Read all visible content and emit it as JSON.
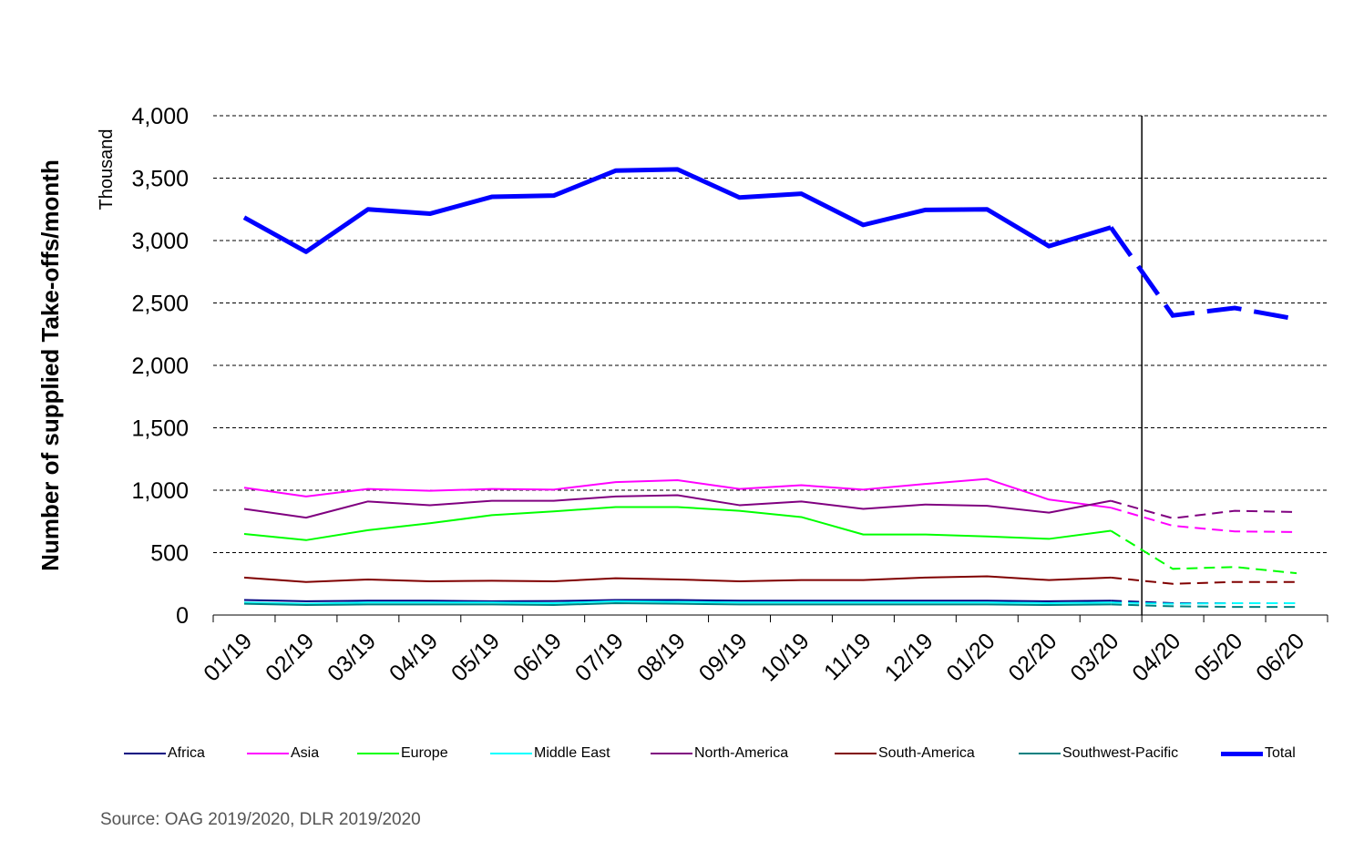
{
  "chart_data": {
    "type": "line",
    "ylabel": "Number of supplied Take-offs/month",
    "y_unit": "Thousand",
    "ylim": [
      0,
      4000
    ],
    "yticks": [
      0,
      500,
      1000,
      1500,
      2000,
      2500,
      3000,
      3500,
      4000
    ],
    "ytick_labels": [
      "0",
      "500",
      "1,000",
      "1,500",
      "2,000",
      "2,500",
      "3,000",
      "3,500",
      "4,000"
    ],
    "grid": "horizontal-dashed",
    "categories": [
      "01/19",
      "02/19",
      "03/19",
      "04/19",
      "05/19",
      "06/19",
      "07/19",
      "08/19",
      "09/19",
      "10/19",
      "11/19",
      "12/19",
      "01/20",
      "02/20",
      "03/20",
      "04/20",
      "05/20",
      "06/20"
    ],
    "forecast_from": "03/20",
    "series": [
      {
        "name": "Africa",
        "color": "#000080",
        "values": [
          120,
          110,
          115,
          115,
          110,
          112,
          120,
          120,
          115,
          115,
          115,
          115,
          115,
          110,
          115,
          95,
          95,
          95
        ]
      },
      {
        "name": "Asia",
        "color": "#ff00ff",
        "values": [
          1020,
          950,
          1010,
          995,
          1010,
          1005,
          1065,
          1080,
          1010,
          1040,
          1005,
          1050,
          1090,
          925,
          860,
          715,
          670,
          665
        ]
      },
      {
        "name": "Europe",
        "color": "#00ff00",
        "values": [
          650,
          600,
          680,
          735,
          800,
          830,
          865,
          865,
          835,
          785,
          645,
          645,
          630,
          610,
          675,
          370,
          385,
          335
        ]
      },
      {
        "name": "Middle East",
        "color": "#00ffff",
        "values": [
          100,
          90,
          100,
          100,
          100,
          95,
          110,
          105,
          100,
          100,
          100,
          100,
          100,
          95,
          100,
          90,
          95,
          95
        ]
      },
      {
        "name": "North-America",
        "color": "#800080",
        "values": [
          850,
          780,
          910,
          880,
          915,
          915,
          950,
          960,
          880,
          910,
          850,
          885,
          875,
          820,
          915,
          775,
          835,
          825
        ]
      },
      {
        "name": "South-America",
        "color": "#800000",
        "values": [
          300,
          265,
          285,
          270,
          275,
          270,
          295,
          285,
          270,
          280,
          280,
          300,
          310,
          280,
          300,
          250,
          265,
          265
        ]
      },
      {
        "name": "Southwest-Pacific",
        "color": "#008080",
        "values": [
          90,
          80,
          85,
          85,
          85,
          80,
          95,
          90,
          85,
          85,
          85,
          85,
          85,
          80,
          85,
          70,
          65,
          65
        ]
      },
      {
        "name": "Total",
        "color": "#0000ff",
        "values": [
          3185,
          2910,
          3250,
          3215,
          3350,
          3360,
          3560,
          3570,
          3345,
          3375,
          3125,
          3245,
          3250,
          2955,
          3105,
          2400,
          2460,
          2370
        ]
      }
    ]
  },
  "source": "Source: OAG 2019/2020, DLR 2019/2020"
}
